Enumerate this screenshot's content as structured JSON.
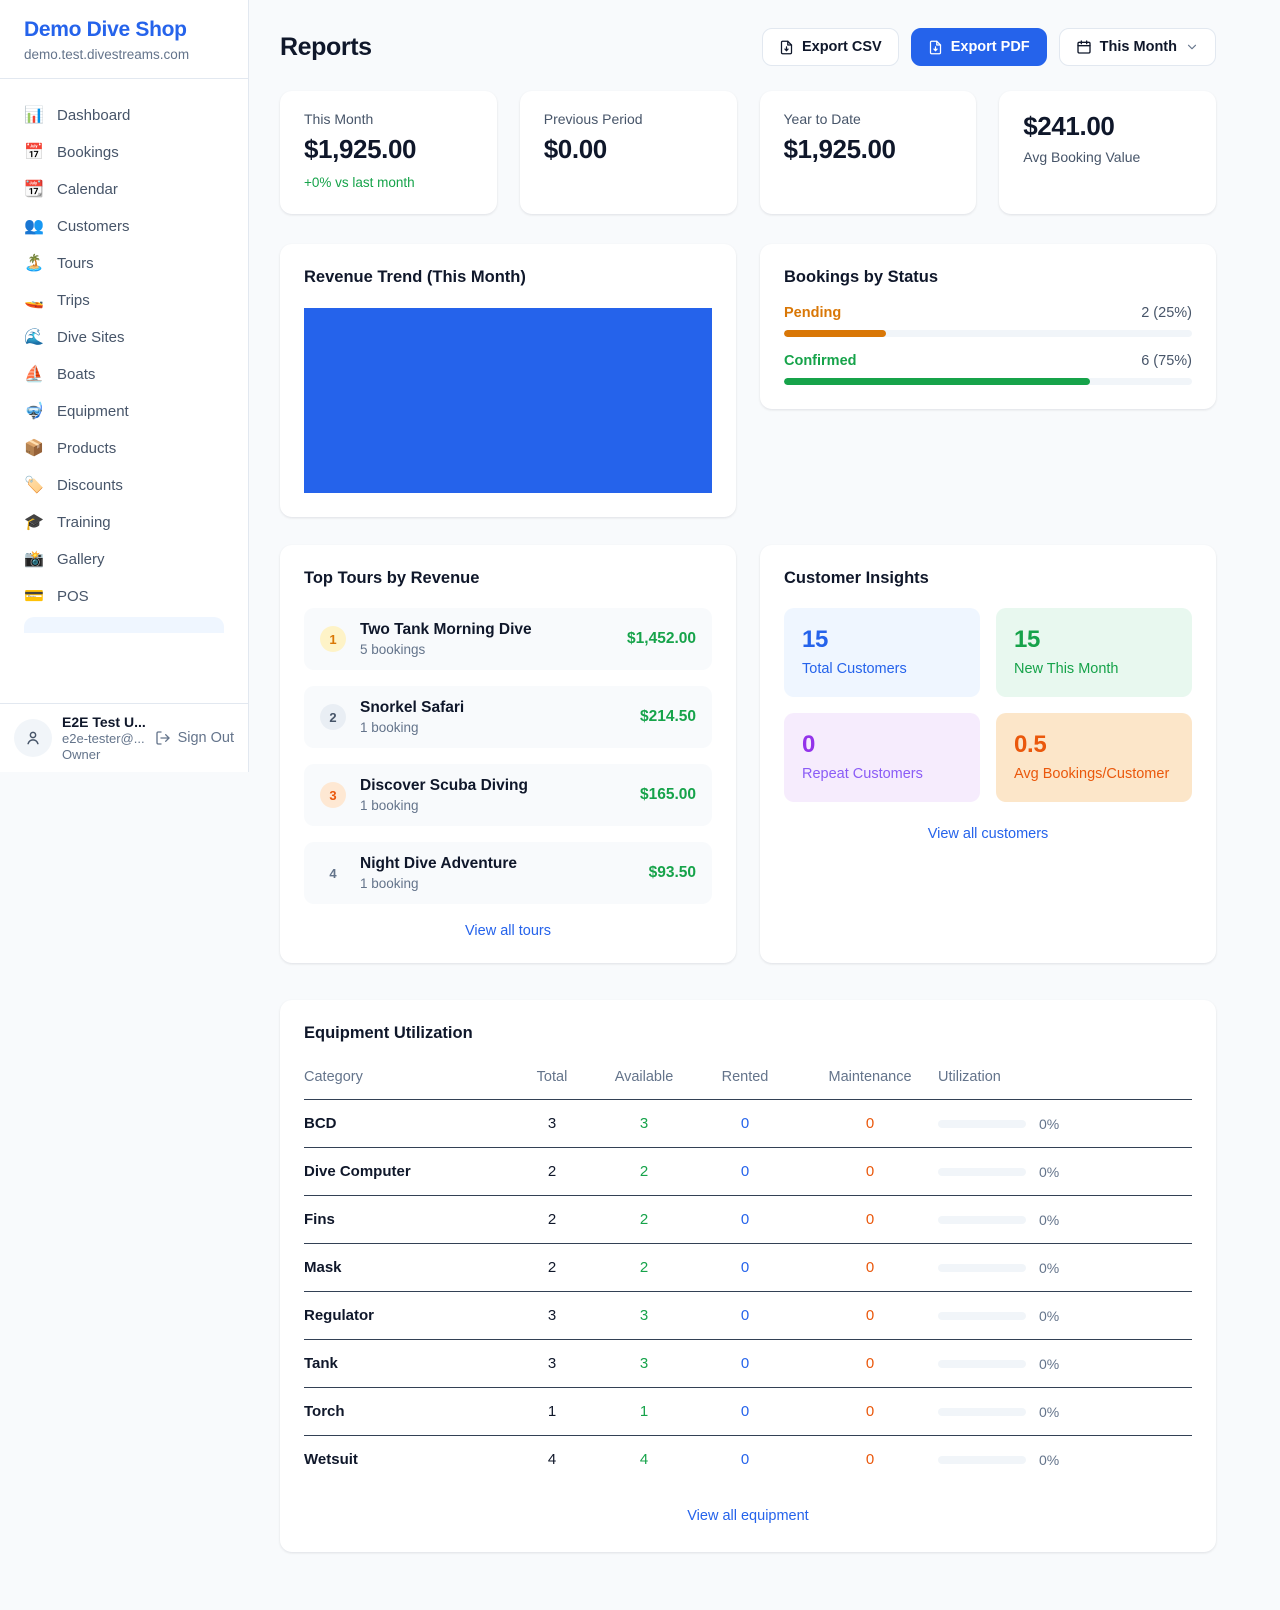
{
  "colors": {
    "accent": "#2563eb",
    "green": "#16a34a",
    "orange": "#d97706",
    "deep_orange": "#ea580c",
    "purple": "#9333ea"
  },
  "sidebar": {
    "brand": "Demo Dive Shop",
    "domain": "demo.test.divestreams.com",
    "items": [
      {
        "icon": "📊",
        "label": "Dashboard"
      },
      {
        "icon": "📅",
        "label": "Bookings"
      },
      {
        "icon": "📆",
        "label": "Calendar"
      },
      {
        "icon": "👥",
        "label": "Customers"
      },
      {
        "icon": "🏝️",
        "label": "Tours"
      },
      {
        "icon": "🚤",
        "label": "Trips"
      },
      {
        "icon": "🌊",
        "label": "Dive Sites"
      },
      {
        "icon": "⛵",
        "label": "Boats"
      },
      {
        "icon": "🤿",
        "label": "Equipment"
      },
      {
        "icon": "📦",
        "label": "Products"
      },
      {
        "icon": "🏷️",
        "label": "Discounts"
      },
      {
        "icon": "🎓",
        "label": "Training"
      },
      {
        "icon": "📸",
        "label": "Gallery"
      },
      {
        "icon": "💳",
        "label": "POS"
      }
    ],
    "user": {
      "name": "E2E Test U...",
      "email": "e2e-tester@...",
      "role": "Owner",
      "sign_out": "Sign Out"
    }
  },
  "header": {
    "title": "Reports",
    "export_csv": "Export CSV",
    "export_pdf": "Export PDF",
    "period": "This Month"
  },
  "stats": {
    "this_month": {
      "label": "This Month",
      "value": "$1,925.00",
      "delta": "+0% vs last month"
    },
    "previous_period": {
      "label": "Previous Period",
      "value": "$0.00"
    },
    "year_to_date": {
      "label": "Year to Date",
      "value": "$1,925.00"
    },
    "avg_booking": {
      "value": "$241.00",
      "label": "Avg Booking Value"
    }
  },
  "revenue_trend": {
    "title": "Revenue Trend (This Month)"
  },
  "bookings_by_status": {
    "title": "Bookings by Status",
    "rows": [
      {
        "label": "Pending",
        "value": "2 (25%)",
        "pct": 25
      },
      {
        "label": "Confirmed",
        "value": "6 (75%)",
        "pct": 75
      }
    ]
  },
  "top_tours": {
    "title": "Top Tours by Revenue",
    "items": [
      {
        "rank": "1",
        "name": "Two Tank Morning Dive",
        "bookings": "5 bookings",
        "revenue": "$1,452.00"
      },
      {
        "rank": "2",
        "name": "Snorkel Safari",
        "bookings": "1 booking",
        "revenue": "$214.50"
      },
      {
        "rank": "3",
        "name": "Discover Scuba Diving",
        "bookings": "1 booking",
        "revenue": "$165.00"
      },
      {
        "rank": "4",
        "name": "Night Dive Adventure",
        "bookings": "1 booking",
        "revenue": "$93.50"
      }
    ],
    "link": "View all tours"
  },
  "customer_insights": {
    "title": "Customer Insights",
    "tiles": [
      {
        "value": "15",
        "label": "Total Customers"
      },
      {
        "value": "15",
        "label": "New This Month"
      },
      {
        "value": "0",
        "label": "Repeat Customers"
      },
      {
        "value": "0.5",
        "label": "Avg Bookings/Customer"
      }
    ],
    "link": "View all customers"
  },
  "equipment": {
    "title": "Equipment Utilization",
    "headers": [
      "Category",
      "Total",
      "Available",
      "Rented",
      "Maintenance",
      "Utilization"
    ],
    "rows": [
      {
        "category": "BCD",
        "total": "3",
        "available": "3",
        "rented": "0",
        "maintenance": "0",
        "utilization": "0%",
        "pct": 0
      },
      {
        "category": "Dive Computer",
        "total": "2",
        "available": "2",
        "rented": "0",
        "maintenance": "0",
        "utilization": "0%",
        "pct": 0
      },
      {
        "category": "Fins",
        "total": "2",
        "available": "2",
        "rented": "0",
        "maintenance": "0",
        "utilization": "0%",
        "pct": 0
      },
      {
        "category": "Mask",
        "total": "2",
        "available": "2",
        "rented": "0",
        "maintenance": "0",
        "utilization": "0%",
        "pct": 0
      },
      {
        "category": "Regulator",
        "total": "3",
        "available": "3",
        "rented": "0",
        "maintenance": "0",
        "utilization": "0%",
        "pct": 0
      },
      {
        "category": "Tank",
        "total": "3",
        "available": "3",
        "rented": "0",
        "maintenance": "0",
        "utilization": "0%",
        "pct": 0
      },
      {
        "category": "Torch",
        "total": "1",
        "available": "1",
        "rented": "0",
        "maintenance": "0",
        "utilization": "0%",
        "pct": 0
      },
      {
        "category": "Wetsuit",
        "total": "4",
        "available": "4",
        "rented": "0",
        "maintenance": "0",
        "utilization": "0%",
        "pct": 0
      }
    ],
    "link": "View all equipment"
  }
}
